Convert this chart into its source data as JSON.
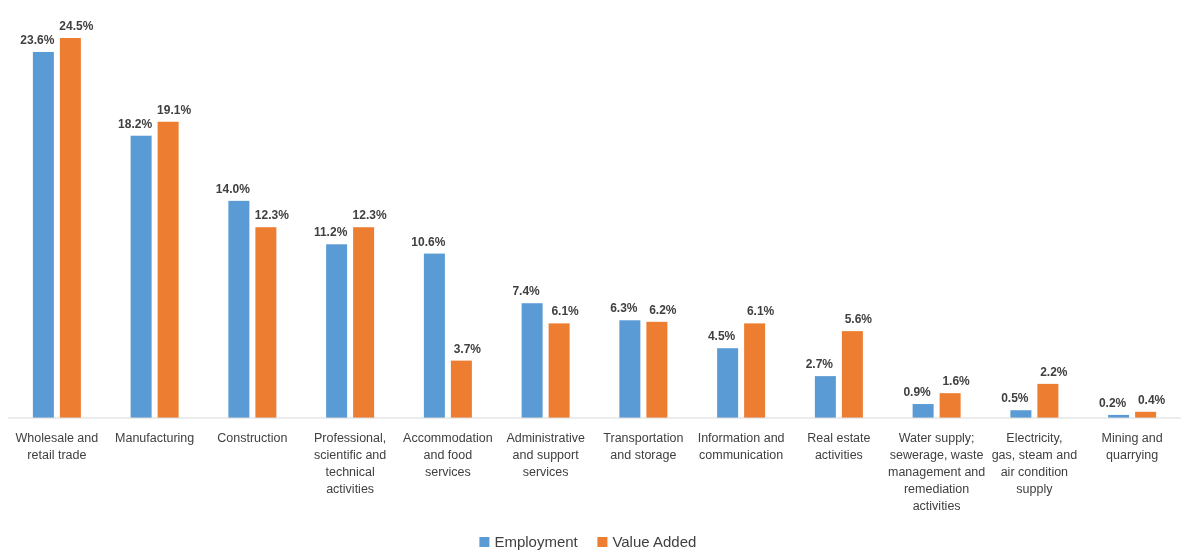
{
  "chart_data": {
    "type": "bar",
    "categories": [
      "Wholesale and retail trade",
      "Manufacturing",
      "Construction",
      "Professional, scientific and technical activities",
      "Accommodation and food services",
      "Administrative and support services",
      "Transportation and storage",
      "Information and communication",
      "Real estate activities",
      "Water supply; sewerage, waste management and remediation activities",
      "Electricity, gas, steam and air condition supply",
      "Mining and quarrying"
    ],
    "series": [
      {
        "name": "Employment",
        "color": "#5b9bd5",
        "values": [
          23.6,
          18.2,
          14.0,
          11.2,
          10.6,
          7.4,
          6.3,
          4.5,
          2.7,
          0.9,
          0.5,
          0.2
        ],
        "value_labels": [
          "23.6%",
          "18.2%",
          "14.0%",
          "11.2%",
          "10.6%",
          "7.4%",
          "6.3%",
          "4.5%",
          "2.7%",
          "0.9%",
          "0.5%",
          "0.2%"
        ]
      },
      {
        "name": "Value Added",
        "color": "#ed7d31",
        "values": [
          24.5,
          19.1,
          12.3,
          12.3,
          3.7,
          6.1,
          6.2,
          6.1,
          5.6,
          1.6,
          2.2,
          0.4
        ],
        "value_labels": [
          "24.5%",
          "19.1%",
          "12.3%",
          "12.3%",
          "3.7%",
          "6.1%",
          "6.2%",
          "6.1%",
          "5.6%",
          "1.6%",
          "2.2%",
          "0.4%"
        ]
      }
    ],
    "legend": "bottom"
  }
}
